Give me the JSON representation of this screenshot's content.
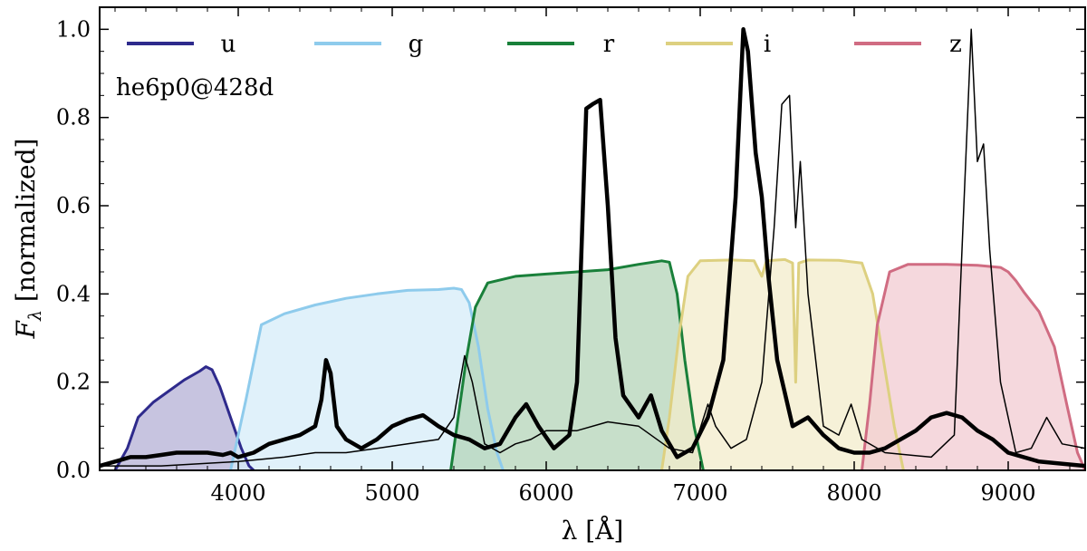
{
  "chart_data": {
    "type": "area",
    "xlabel": "λ [Å]",
    "ylabel": "F_λ [normalized]",
    "ylabel_main": "F",
    "ylabel_sub": "λ",
    "ylabel_rest": " [normalized]",
    "xlim": [
      3100,
      9500
    ],
    "ylim": [
      0,
      1.05
    ],
    "xticks": [
      4000,
      5000,
      6000,
      7000,
      8000,
      9000
    ],
    "yticks": [
      0.0,
      0.2,
      0.4,
      0.6,
      0.8,
      1.0
    ],
    "xtick_labels": [
      "4000",
      "5000",
      "6000",
      "7000",
      "8000",
      "9000"
    ],
    "ytick_labels": [
      "0.0",
      "0.2",
      "0.4",
      "0.6",
      "0.8",
      "1.0"
    ],
    "grid": false,
    "legend_position": "top",
    "annotation": "he6p0@428d",
    "filters": [
      {
        "name": "u",
        "color": "#2e2a8c",
        "fill": "#b4b0d6",
        "points": [
          [
            3200,
            0
          ],
          [
            3280,
            0.05
          ],
          [
            3350,
            0.12
          ],
          [
            3450,
            0.155
          ],
          [
            3550,
            0.18
          ],
          [
            3650,
            0.205
          ],
          [
            3750,
            0.225
          ],
          [
            3790,
            0.235
          ],
          [
            3830,
            0.228
          ],
          [
            3880,
            0.19
          ],
          [
            3950,
            0.12
          ],
          [
            4020,
            0.05
          ],
          [
            4070,
            0.01
          ],
          [
            4100,
            0
          ]
        ]
      },
      {
        "name": "g",
        "color": "#8ecbec",
        "fill": "#d6ecf8",
        "points": [
          [
            3950,
            0
          ],
          [
            4050,
            0.16
          ],
          [
            4150,
            0.33
          ],
          [
            4300,
            0.355
          ],
          [
            4500,
            0.375
          ],
          [
            4700,
            0.39
          ],
          [
            4900,
            0.4
          ],
          [
            5100,
            0.408
          ],
          [
            5300,
            0.41
          ],
          [
            5400,
            0.413
          ],
          [
            5450,
            0.41
          ],
          [
            5500,
            0.38
          ],
          [
            5560,
            0.28
          ],
          [
            5620,
            0.14
          ],
          [
            5680,
            0.04
          ],
          [
            5720,
            0
          ]
        ]
      },
      {
        "name": "r",
        "color": "#19803a",
        "fill": "#b4d4b8",
        "points": [
          [
            5380,
            0
          ],
          [
            5420,
            0.1
          ],
          [
            5480,
            0.25
          ],
          [
            5540,
            0.37
          ],
          [
            5620,
            0.425
          ],
          [
            5800,
            0.44
          ],
          [
            6000,
            0.445
          ],
          [
            6200,
            0.45
          ],
          [
            6400,
            0.455
          ],
          [
            6600,
            0.467
          ],
          [
            6750,
            0.475
          ],
          [
            6800,
            0.472
          ],
          [
            6850,
            0.4
          ],
          [
            6900,
            0.25
          ],
          [
            6960,
            0.1
          ],
          [
            7020,
            0
          ]
        ]
      },
      {
        "name": "i",
        "color": "#ddd080",
        "fill": "#f3eccb",
        "points": [
          [
            6750,
            0
          ],
          [
            6800,
            0.12
          ],
          [
            6860,
            0.3
          ],
          [
            6920,
            0.44
          ],
          [
            7000,
            0.475
          ],
          [
            7200,
            0.477
          ],
          [
            7350,
            0.475
          ],
          [
            7400,
            0.44
          ],
          [
            7430,
            0.475
          ],
          [
            7550,
            0.478
          ],
          [
            7600,
            0.47
          ],
          [
            7620,
            0.2
          ],
          [
            7640,
            0.47
          ],
          [
            7700,
            0.477
          ],
          [
            7900,
            0.476
          ],
          [
            8050,
            0.47
          ],
          [
            8120,
            0.4
          ],
          [
            8190,
            0.25
          ],
          [
            8260,
            0.1
          ],
          [
            8320,
            0
          ]
        ]
      },
      {
        "name": "z",
        "color": "#d06c82",
        "fill": "#f2cbd2",
        "points": [
          [
            8050,
            0
          ],
          [
            8100,
            0.15
          ],
          [
            8150,
            0.33
          ],
          [
            8230,
            0.45
          ],
          [
            8350,
            0.467
          ],
          [
            8600,
            0.467
          ],
          [
            8800,
            0.465
          ],
          [
            8950,
            0.46
          ],
          [
            9000,
            0.45
          ],
          [
            9050,
            0.43
          ],
          [
            9100,
            0.405
          ],
          [
            9200,
            0.36
          ],
          [
            9300,
            0.28
          ],
          [
            9380,
            0.15
          ],
          [
            9450,
            0.04
          ],
          [
            9500,
            0
          ]
        ]
      }
    ],
    "series": [
      {
        "name": "",
        "style": "thick",
        "points": [
          [
            3100,
            0.01
          ],
          [
            3200,
            0.02
          ],
          [
            3300,
            0.03
          ],
          [
            3400,
            0.03
          ],
          [
            3500,
            0.035
          ],
          [
            3600,
            0.04
          ],
          [
            3700,
            0.04
          ],
          [
            3800,
            0.04
          ],
          [
            3900,
            0.035
          ],
          [
            3950,
            0.04
          ],
          [
            4000,
            0.03
          ],
          [
            4100,
            0.04
          ],
          [
            4200,
            0.06
          ],
          [
            4300,
            0.07
          ],
          [
            4400,
            0.08
          ],
          [
            4500,
            0.1
          ],
          [
            4540,
            0.16
          ],
          [
            4570,
            0.25
          ],
          [
            4600,
            0.22
          ],
          [
            4640,
            0.1
          ],
          [
            4700,
            0.07
          ],
          [
            4800,
            0.05
          ],
          [
            4900,
            0.07
          ],
          [
            5000,
            0.1
          ],
          [
            5100,
            0.115
          ],
          [
            5200,
            0.125
          ],
          [
            5300,
            0.1
          ],
          [
            5400,
            0.08
          ],
          [
            5500,
            0.07
          ],
          [
            5600,
            0.05
          ],
          [
            5700,
            0.06
          ],
          [
            5800,
            0.12
          ],
          [
            5870,
            0.15
          ],
          [
            5950,
            0.1
          ],
          [
            6050,
            0.05
          ],
          [
            6150,
            0.08
          ],
          [
            6200,
            0.2
          ],
          [
            6260,
            0.82
          ],
          [
            6300,
            0.83
          ],
          [
            6350,
            0.84
          ],
          [
            6400,
            0.6
          ],
          [
            6450,
            0.3
          ],
          [
            6500,
            0.17
          ],
          [
            6600,
            0.12
          ],
          [
            6680,
            0.17
          ],
          [
            6750,
            0.09
          ],
          [
            6850,
            0.03
          ],
          [
            6950,
            0.05
          ],
          [
            7050,
            0.12
          ],
          [
            7150,
            0.25
          ],
          [
            7230,
            0.62
          ],
          [
            7280,
            1.0
          ],
          [
            7310,
            0.95
          ],
          [
            7360,
            0.72
          ],
          [
            7400,
            0.62
          ],
          [
            7440,
            0.45
          ],
          [
            7500,
            0.25
          ],
          [
            7600,
            0.1
          ],
          [
            7700,
            0.12
          ],
          [
            7800,
            0.08
          ],
          [
            7900,
            0.05
          ],
          [
            8000,
            0.04
          ],
          [
            8100,
            0.04
          ],
          [
            8200,
            0.05
          ],
          [
            8400,
            0.09
          ],
          [
            8500,
            0.12
          ],
          [
            8600,
            0.13
          ],
          [
            8700,
            0.12
          ],
          [
            8800,
            0.09
          ],
          [
            8900,
            0.07
          ],
          [
            9000,
            0.04
          ],
          [
            9200,
            0.02
          ],
          [
            9500,
            0.01
          ]
        ]
      },
      {
        "name": "",
        "style": "thin",
        "points": [
          [
            3100,
            0.01
          ],
          [
            3500,
            0.01
          ],
          [
            4000,
            0.02
          ],
          [
            4300,
            0.03
          ],
          [
            4500,
            0.04
          ],
          [
            4700,
            0.04
          ],
          [
            4900,
            0.05
          ],
          [
            5100,
            0.06
          ],
          [
            5300,
            0.07
          ],
          [
            5400,
            0.12
          ],
          [
            5470,
            0.26
          ],
          [
            5520,
            0.2
          ],
          [
            5600,
            0.06
          ],
          [
            5700,
            0.04
          ],
          [
            5800,
            0.06
          ],
          [
            5900,
            0.07
          ],
          [
            6000,
            0.09
          ],
          [
            6200,
            0.09
          ],
          [
            6400,
            0.11
          ],
          [
            6600,
            0.1
          ],
          [
            6800,
            0.05
          ],
          [
            6950,
            0.04
          ],
          [
            7050,
            0.15
          ],
          [
            7100,
            0.1
          ],
          [
            7200,
            0.05
          ],
          [
            7300,
            0.07
          ],
          [
            7400,
            0.2
          ],
          [
            7480,
            0.55
          ],
          [
            7530,
            0.83
          ],
          [
            7580,
            0.85
          ],
          [
            7620,
            0.55
          ],
          [
            7650,
            0.7
          ],
          [
            7700,
            0.4
          ],
          [
            7800,
            0.1
          ],
          [
            7900,
            0.08
          ],
          [
            7980,
            0.15
          ],
          [
            8050,
            0.07
          ],
          [
            8200,
            0.04
          ],
          [
            8500,
            0.03
          ],
          [
            8650,
            0.08
          ],
          [
            8700,
            0.5
          ],
          [
            8760,
            1.0
          ],
          [
            8800,
            0.7
          ],
          [
            8840,
            0.74
          ],
          [
            8880,
            0.5
          ],
          [
            8950,
            0.2
          ],
          [
            9050,
            0.04
          ],
          [
            9150,
            0.05
          ],
          [
            9250,
            0.12
          ],
          [
            9350,
            0.06
          ],
          [
            9500,
            0.05
          ]
        ]
      }
    ]
  }
}
